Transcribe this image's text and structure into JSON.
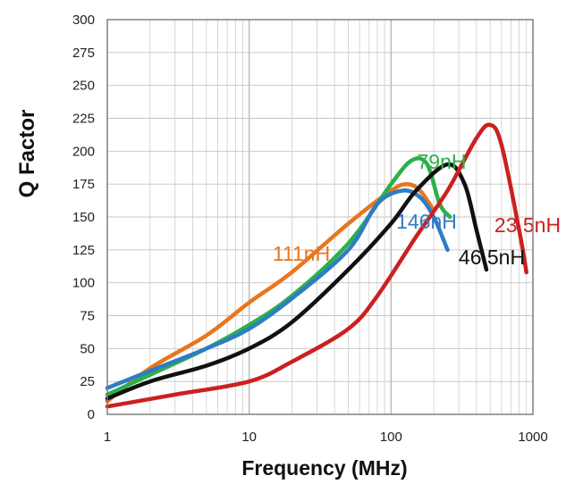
{
  "chart_data": {
    "type": "line",
    "title": "",
    "xlabel": "Frequency (MHz)",
    "ylabel": "Q Factor",
    "x_scale": "log",
    "xlim": [
      1,
      1000
    ],
    "ylim": [
      0,
      300
    ],
    "grid": true,
    "x_ticks": [
      "1",
      "10",
      "100",
      "1000"
    ],
    "y_ticks": [
      "0",
      "25",
      "50",
      "75",
      "100",
      "125",
      "150",
      "175",
      "200",
      "225",
      "250",
      "275",
      "300"
    ],
    "series": [
      {
        "name": "111nH",
        "color": "#e8761e",
        "points": [
          [
            1,
            10
          ],
          [
            2,
            35
          ],
          [
            5,
            60
          ],
          [
            10,
            85
          ],
          [
            20,
            108
          ],
          [
            50,
            145
          ],
          [
            100,
            170
          ],
          [
            130,
            175
          ],
          [
            160,
            170
          ],
          [
            200,
            155
          ]
        ]
      },
      {
        "name": "79nH",
        "color": "#2bb04a",
        "points": [
          [
            1,
            15
          ],
          [
            2,
            30
          ],
          [
            5,
            50
          ],
          [
            10,
            68
          ],
          [
            20,
            90
          ],
          [
            50,
            130
          ],
          [
            100,
            175
          ],
          [
            140,
            193
          ],
          [
            180,
            190
          ],
          [
            220,
            160
          ],
          [
            260,
            150
          ]
        ]
      },
      {
        "name": "146nH",
        "color": "#2f7cc4",
        "points": [
          [
            1,
            20
          ],
          [
            2,
            33
          ],
          [
            5,
            50
          ],
          [
            10,
            65
          ],
          [
            20,
            88
          ],
          [
            50,
            125
          ],
          [
            80,
            160
          ],
          [
            120,
            170
          ],
          [
            160,
            165
          ],
          [
            200,
            150
          ],
          [
            250,
            125
          ]
        ]
      },
      {
        "name": "46.5nH",
        "color": "#111111",
        "points": [
          [
            1,
            12
          ],
          [
            2,
            25
          ],
          [
            5,
            37
          ],
          [
            10,
            50
          ],
          [
            20,
            70
          ],
          [
            50,
            110
          ],
          [
            100,
            145
          ],
          [
            150,
            170
          ],
          [
            250,
            190
          ],
          [
            330,
            175
          ],
          [
            400,
            140
          ],
          [
            470,
            110
          ]
        ]
      },
      {
        "name": "23.5nH",
        "color": "#cc2020",
        "points": [
          [
            1,
            6
          ],
          [
            3,
            15
          ],
          [
            10,
            25
          ],
          [
            20,
            40
          ],
          [
            50,
            65
          ],
          [
            80,
            90
          ],
          [
            150,
            135
          ],
          [
            250,
            170
          ],
          [
            400,
            210
          ],
          [
            500,
            220
          ],
          [
            600,
            205
          ],
          [
            800,
            140
          ],
          [
            900,
            108
          ]
        ]
      }
    ]
  }
}
